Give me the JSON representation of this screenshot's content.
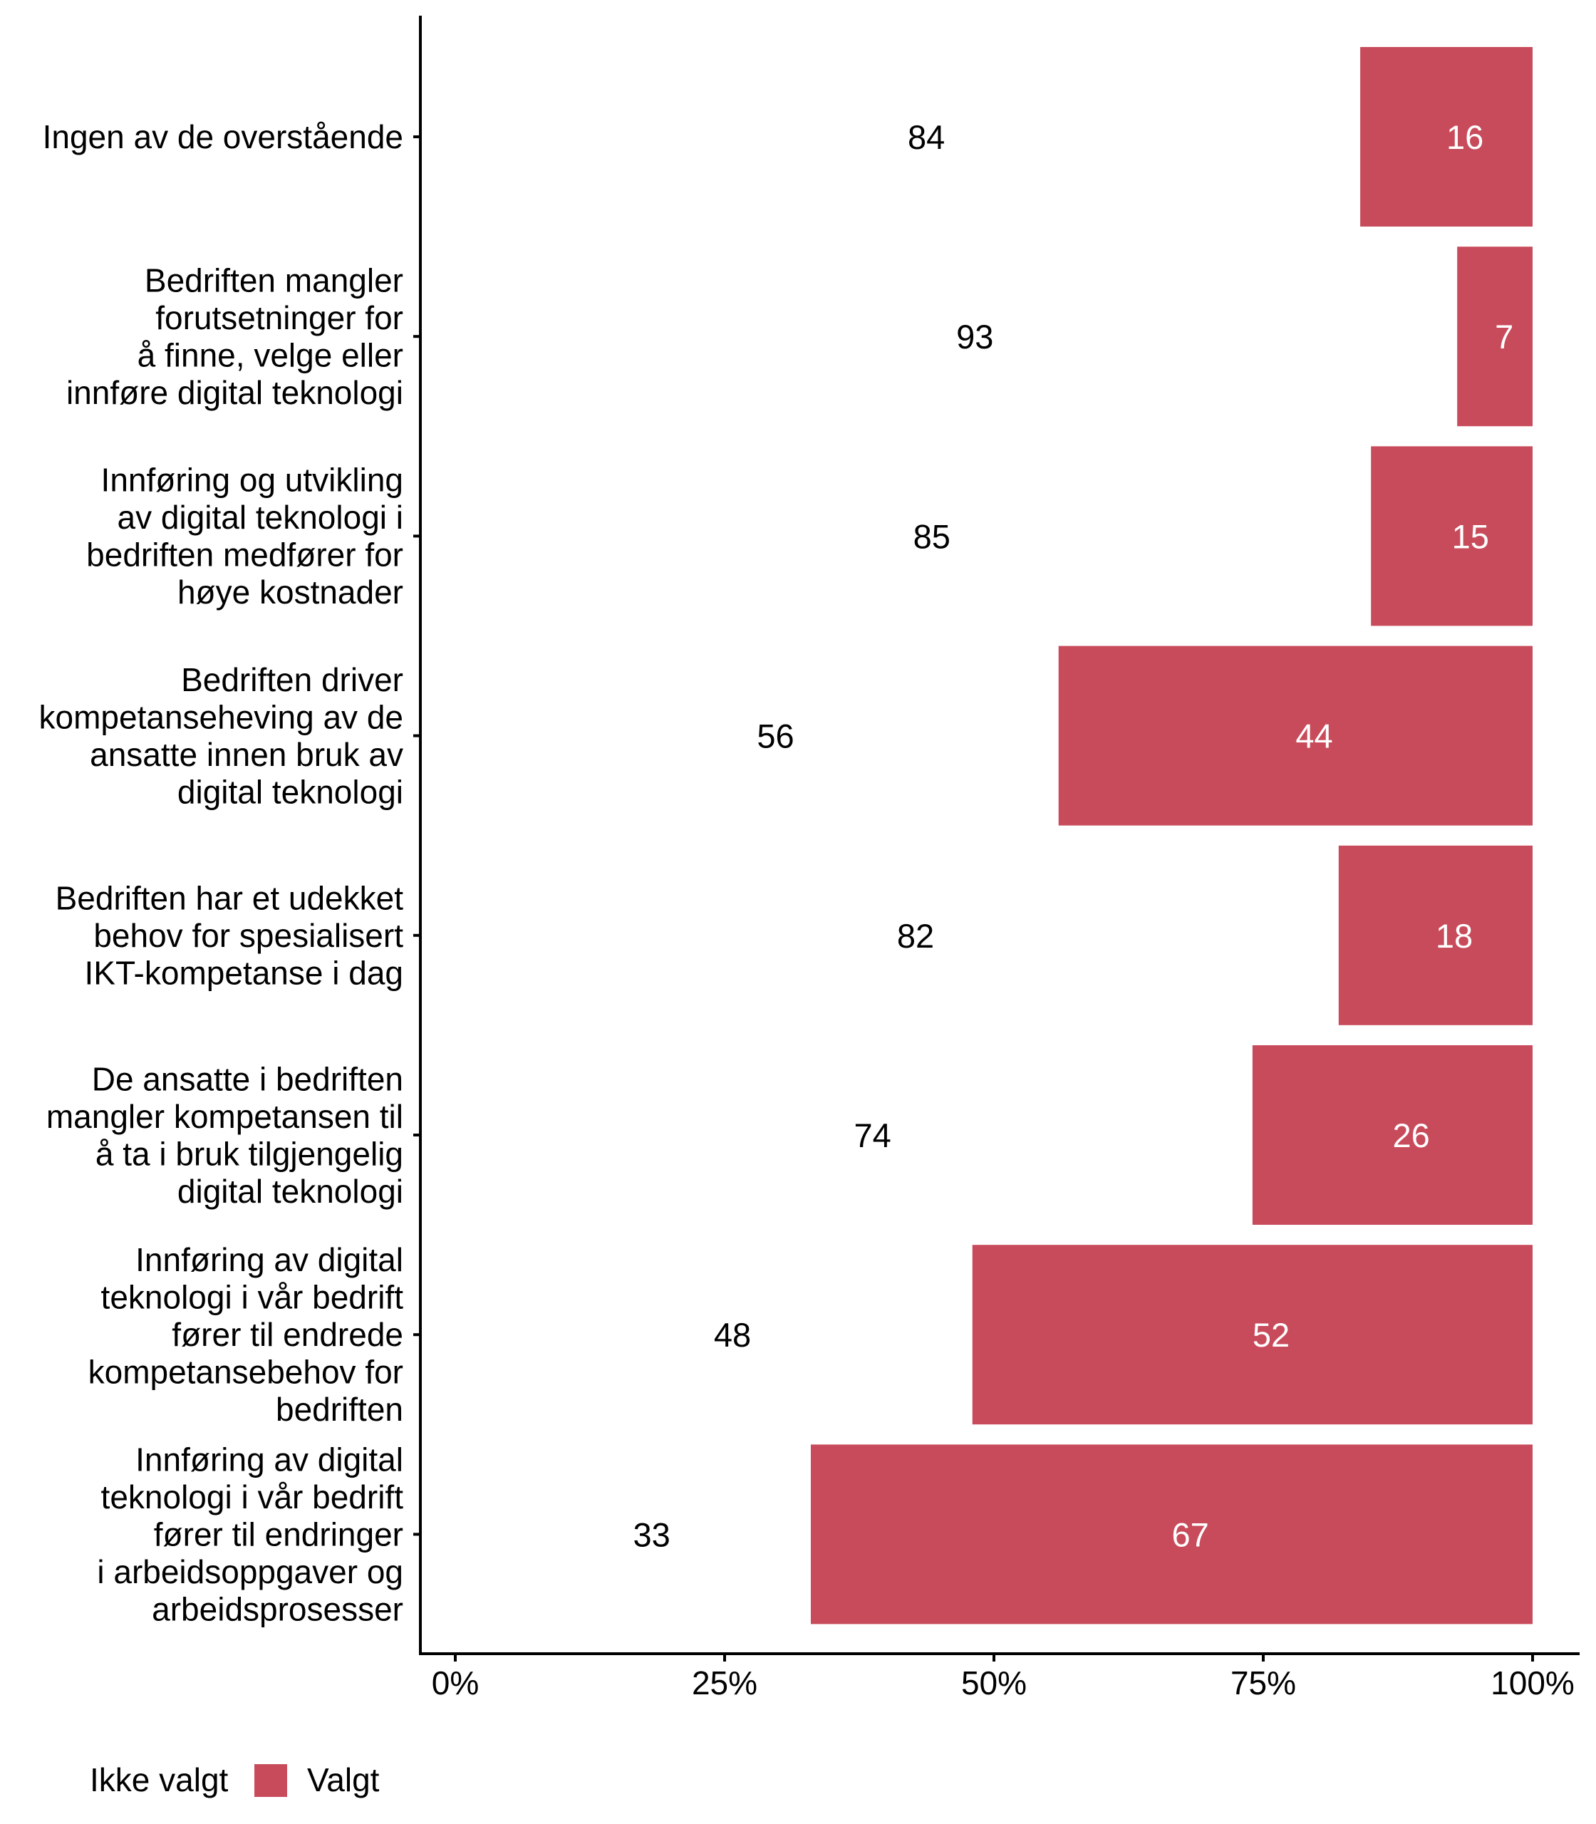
{
  "chart_data": {
    "type": "bar",
    "orientation": "horizontal",
    "stacked": true,
    "normalized_percent": true,
    "title": "",
    "xlabel": "",
    "ylabel": "",
    "xlim": [
      0,
      100
    ],
    "x_ticks": [
      0,
      25,
      50,
      75,
      100
    ],
    "x_tick_labels": [
      "0%",
      "25%",
      "50%",
      "75%",
      "100%"
    ],
    "grid": false,
    "categories": [
      [
        "Ingen av de overstående"
      ],
      [
        "Bedriften mangler",
        "forutsetninger for",
        "å finne, velge eller",
        "innføre digital teknologi"
      ],
      [
        "Innføring og utvikling",
        "av digital teknologi i",
        "bedriften medfører for",
        "høye kostnader"
      ],
      [
        "Bedriften driver",
        "kompetanseheving av de",
        "ansatte innen bruk av",
        "digital teknologi"
      ],
      [
        "Bedriften har et udekket",
        "behov for spesialisert",
        "IKT-kompetanse i dag"
      ],
      [
        "De ansatte i bedriften",
        "mangler kompetansen til",
        "å ta i bruk tilgjengelig",
        "digital teknologi"
      ],
      [
        "Innføring av digital",
        "teknologi i vår bedrift",
        "fører til endrede",
        "kompetansebehov for",
        "bedriften"
      ],
      [
        "Innføring av digital",
        "teknologi i vår bedrift",
        "fører til endringer",
        "i arbeidsoppgaver og",
        "arbeidsprosesser"
      ]
    ],
    "series": [
      {
        "name": "Ikke valgt",
        "color": "#FFFFFF",
        "label_color": "#000000",
        "values": [
          84,
          93,
          85,
          56,
          82,
          74,
          48,
          33
        ],
        "labels": [
          "84",
          "93",
          "85",
          "56",
          "82",
          "74",
          "48",
          "33"
        ]
      },
      {
        "name": "Valgt",
        "color": "#C84B5B",
        "label_color": "#FFFFFF",
        "values": [
          16,
          7,
          15,
          44,
          18,
          26,
          52,
          67
        ],
        "labels": [
          "16",
          "7",
          "15",
          "44",
          "18",
          "26",
          "52",
          "67"
        ]
      }
    ],
    "legend": {
      "position": "bottom-left",
      "entries": [
        "Ikke valgt",
        "Valgt"
      ]
    }
  }
}
